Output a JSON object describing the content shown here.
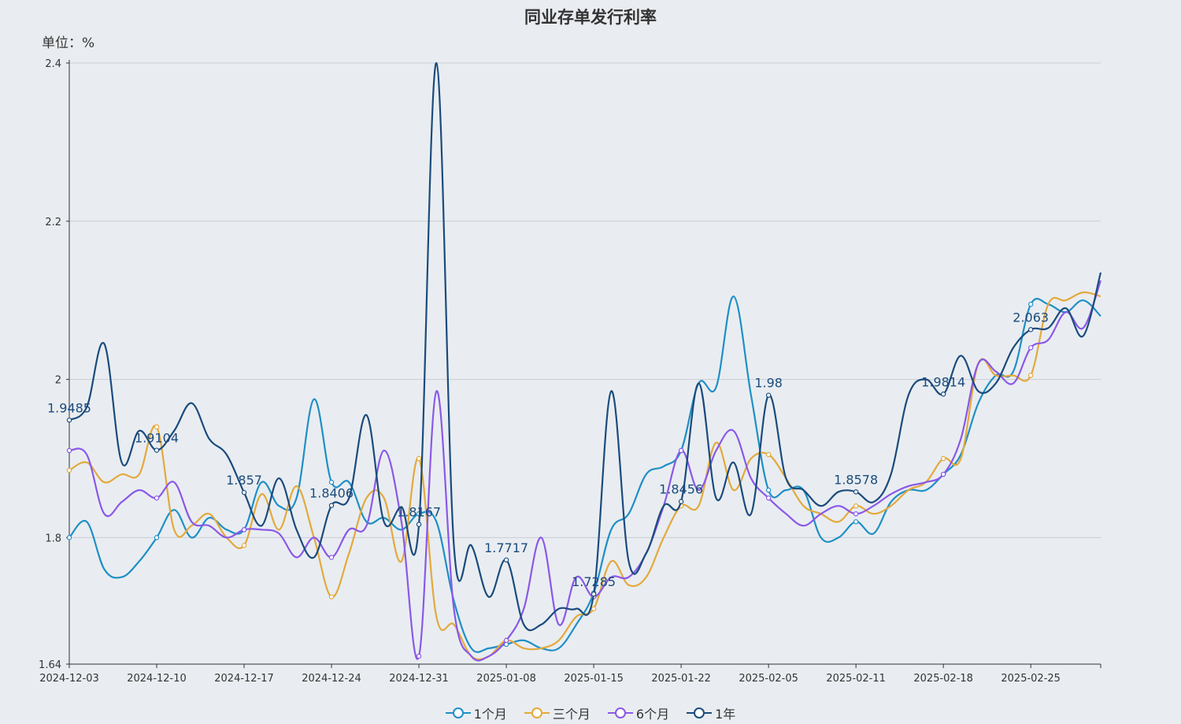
{
  "chart_data": {
    "type": "line",
    "title": "同业存单发行利率",
    "unit_label": "单位：%",
    "xlabel": "",
    "ylabel": "",
    "ylim": [
      1.64,
      2.4
    ],
    "y_ticks": [
      "1.64",
      "1.8",
      "2",
      "2.2",
      "2.4"
    ],
    "y_tick_values": [
      1.64,
      1.8,
      2.0,
      2.2,
      2.4
    ],
    "x_labels": [
      "2024-12-03",
      "2024-12-10",
      "2024-12-17",
      "2024-12-24",
      "2024-12-31",
      "2025-01-08",
      "2025-01-15",
      "2025-01-22",
      "2025-02-05",
      "2025-02-11",
      "2025-02-18",
      "2025-02-25"
    ],
    "n_points": 60,
    "label_step": 5,
    "grid": true,
    "legend_position": "bottom",
    "series": [
      {
        "name": "1个月",
        "color": "#1f8fc6",
        "values": [
          1.8,
          1.82,
          1.76,
          1.75,
          1.77,
          1.8,
          1.835,
          1.8,
          1.825,
          1.81,
          1.81,
          1.87,
          1.84,
          1.85,
          1.975,
          1.87,
          1.87,
          1.82,
          1.825,
          1.81,
          1.83,
          1.82,
          1.72,
          1.66,
          1.66,
          1.665,
          1.67,
          1.66,
          1.66,
          1.69,
          1.73,
          1.81,
          1.83,
          1.88,
          1.89,
          1.91,
          1.995,
          1.99,
          2.105,
          1.98,
          1.86,
          1.86,
          1.86,
          1.8,
          1.8,
          1.82,
          1.805,
          1.845,
          1.86,
          1.86,
          1.88,
          1.905,
          1.97,
          2.005,
          2.01,
          2.095,
          2.095,
          2.085,
          2.1,
          2.08
        ]
      },
      {
        "name": "三个月",
        "color": "#e3a93c",
        "values": [
          1.885,
          1.895,
          1.87,
          1.88,
          1.88,
          1.94,
          1.81,
          1.815,
          1.83,
          1.8,
          1.79,
          1.855,
          1.81,
          1.865,
          1.8,
          1.725,
          1.78,
          1.85,
          1.85,
          1.77,
          1.9,
          1.7,
          1.69,
          1.65,
          1.65,
          1.67,
          1.66,
          1.66,
          1.67,
          1.7,
          1.71,
          1.77,
          1.74,
          1.75,
          1.8,
          1.84,
          1.84,
          1.92,
          1.86,
          1.9,
          1.905,
          1.875,
          1.84,
          1.83,
          1.82,
          1.84,
          1.83,
          1.84,
          1.86,
          1.87,
          1.9,
          1.9,
          2.02,
          2.005,
          2.005,
          2.005,
          2.095,
          2.1,
          2.11,
          2.105
        ]
      },
      {
        "name": "6个月",
        "color": "#8a58e8",
        "values": [
          1.91,
          1.905,
          1.83,
          1.845,
          1.86,
          1.85,
          1.87,
          1.82,
          1.815,
          1.8,
          1.81,
          1.81,
          1.805,
          1.775,
          1.8,
          1.775,
          1.81,
          1.815,
          1.91,
          1.82,
          1.65,
          1.985,
          1.71,
          1.65,
          1.65,
          1.67,
          1.71,
          1.8,
          1.69,
          1.75,
          1.725,
          1.75,
          1.75,
          1.78,
          1.84,
          1.91,
          1.86,
          1.91,
          1.935,
          1.875,
          1.85,
          1.83,
          1.815,
          1.83,
          1.84,
          1.83,
          1.84,
          1.855,
          1.865,
          1.87,
          1.88,
          1.925,
          2.02,
          2.01,
          1.995,
          2.04,
          2.05,
          2.085,
          2.065,
          2.125
        ]
      },
      {
        "name": "1年",
        "color": "#1b4b7d",
        "values": [
          1.9485,
          1.965,
          2.045,
          1.895,
          1.935,
          1.9104,
          1.935,
          1.97,
          1.925,
          1.905,
          1.857,
          1.815,
          1.875,
          1.81,
          1.775,
          1.8406,
          1.85,
          1.955,
          1.82,
          1.8387,
          1.8167,
          2.4,
          1.79,
          1.79,
          1.725,
          1.7717,
          1.69,
          1.69,
          1.71,
          1.71,
          1.7285,
          1.985,
          1.77,
          1.78,
          1.84,
          1.8456,
          1.995,
          1.85,
          1.895,
          1.83,
          1.98,
          1.875,
          1.86,
          1.84,
          1.8578,
          1.8578,
          1.845,
          1.88,
          1.98,
          2.0,
          1.9814,
          2.03,
          1.985,
          1.995,
          2.04,
          2.063,
          2.065,
          2.09,
          2.055,
          2.135
        ]
      }
    ],
    "annotations": [
      {
        "index": 0,
        "text": "1.9485"
      },
      {
        "index": 5,
        "text": "1.9104"
      },
      {
        "index": 10,
        "text": "1.857"
      },
      {
        "index": 15,
        "text": "1.8406"
      },
      {
        "index": 20,
        "text": "1.8167"
      },
      {
        "index": 25,
        "text": "1.7717"
      },
      {
        "index": 30,
        "text": "1.7285"
      },
      {
        "index": 35,
        "text": "1.8456"
      },
      {
        "index": 40,
        "text": "1.98"
      },
      {
        "index": 45,
        "text": "1.8578"
      },
      {
        "index": 50,
        "text": "1.9814"
      },
      {
        "index": 55,
        "text": "2.063"
      }
    ],
    "annotation_series": "1年"
  }
}
